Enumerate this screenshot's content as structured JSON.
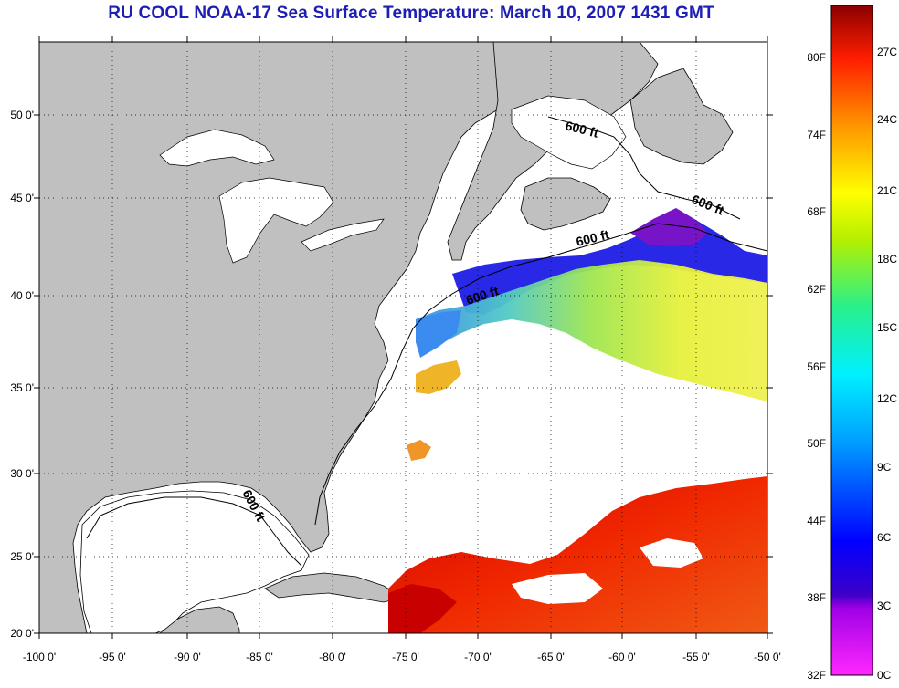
{
  "title": "RU COOL  NOAA-17  Sea Surface Temperature:  March 10, 2007 1431 GMT",
  "lat_labels": [
    "50 0'",
    "45 0'",
    "40 0'",
    "35 0'",
    "30 0'",
    "25 0'",
    "20 0'"
  ],
  "lon_labels": [
    "-100 0'",
    "-95 0'",
    "-90 0'",
    "-85 0'",
    "-80 0'",
    "-75 0'",
    "-70 0'",
    "-65 0'",
    "-60 0'",
    "-55 0'",
    "-50 0'"
  ],
  "contour_labels": [
    "600 ft",
    "600 ft",
    "600 ft",
    "600 ft",
    "600 ft"
  ],
  "colorbar": {
    "fahrenheit": [
      "80F",
      "74F",
      "68F",
      "62F",
      "56F",
      "50F",
      "44F",
      "38F",
      "32F"
    ],
    "celsius": [
      "27C",
      "24C",
      "21C",
      "18C",
      "15C",
      "12C",
      "9C",
      "6C",
      "3C",
      "0C"
    ]
  },
  "colors": {
    "land": "#c0c0c0",
    "title": "#1e1eb4",
    "warm": "#e60000",
    "cold": "#1e1edc"
  }
}
